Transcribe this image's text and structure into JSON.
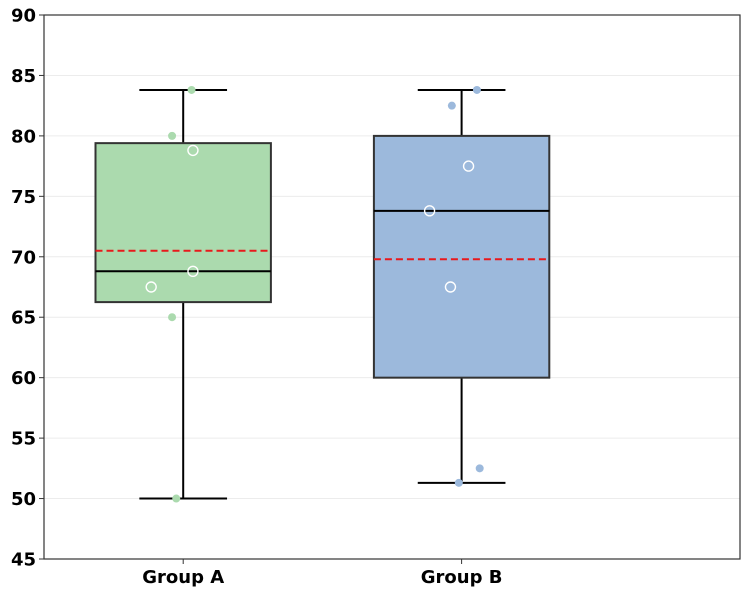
{
  "chart_data": {
    "type": "box",
    "title": "",
    "xlabel": "",
    "ylabel": "",
    "ylim": [
      45,
      90
    ],
    "yticks": [
      45,
      50,
      55,
      60,
      65,
      70,
      75,
      80,
      85,
      90
    ],
    "grid": "horizontal",
    "categories": [
      "Group A",
      "Group B"
    ],
    "boxes": [
      {
        "category": "Group A",
        "color": "#abdaae",
        "point_color": "#abdaae",
        "whisker_low": 50,
        "q1": 66.25,
        "median": 68.8,
        "mean": 70.5,
        "q3": 79.4,
        "whisker_high": 83.8,
        "points": [
          {
            "y": 83.8,
            "style": "filled",
            "jitter": 0.06
          },
          {
            "y": 80,
            "style": "filled",
            "jitter": -0.08
          },
          {
            "y": 78.8,
            "style": "hollow",
            "jitter": 0.07
          },
          {
            "y": 68.8,
            "style": "hollow",
            "jitter": 0.07
          },
          {
            "y": 67.5,
            "style": "hollow",
            "jitter": -0.23
          },
          {
            "y": 65,
            "style": "filled",
            "jitter": -0.08
          },
          {
            "y": 50,
            "style": "filled",
            "jitter": -0.05
          }
        ]
      },
      {
        "category": "Group B",
        "color": "#9cb9dc",
        "point_color": "#9cb9dc",
        "whisker_low": 51.3,
        "q1": 60,
        "median": 73.8,
        "mean": 69.8,
        "q3": 80,
        "whisker_high": 83.8,
        "points": [
          {
            "y": 83.8,
            "style": "filled",
            "jitter": 0.11
          },
          {
            "y": 82.5,
            "style": "filled",
            "jitter": -0.07
          },
          {
            "y": 77.5,
            "style": "hollow",
            "jitter": 0.05
          },
          {
            "y": 73.8,
            "style": "hollow",
            "jitter": -0.23
          },
          {
            "y": 67.5,
            "style": "hollow",
            "jitter": -0.08
          },
          {
            "y": 52.5,
            "style": "filled",
            "jitter": 0.13
          },
          {
            "y": 51.3,
            "style": "filled",
            "jitter": -0.02
          }
        ]
      }
    ],
    "median_color": "#000000",
    "mean_color": "#e8191c",
    "mean_style": "dashed"
  }
}
